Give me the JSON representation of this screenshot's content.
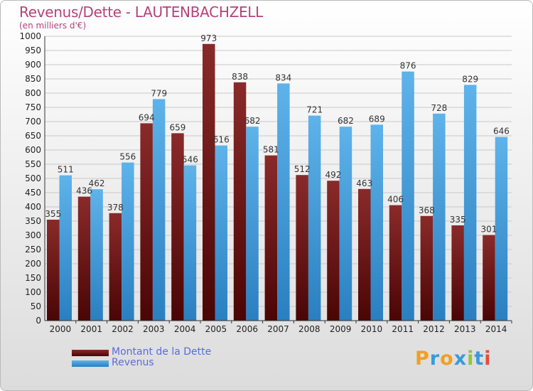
{
  "title": "Revenus/Dette - LAUTENBACHZELL",
  "subtitle": "(en milliers d'€)",
  "logo": {
    "text": "Proxiti",
    "colors": [
      "#f0a020",
      "#3a9ad9",
      "#f0a020",
      "#3a9ad9",
      "#8dc63f",
      "#3a9ad9",
      "#e84c3d"
    ]
  },
  "chart_data": {
    "type": "bar",
    "title": "Revenus/Dette - LAUTENBACHZELL",
    "subtitle": "(en milliers d'€)",
    "categories": [
      "2000",
      "2001",
      "2002",
      "2003",
      "2004",
      "2005",
      "2006",
      "2007",
      "2008",
      "2009",
      "2010",
      "2011",
      "2012",
      "2013",
      "2014"
    ],
    "series": [
      {
        "name": "Montant de la Dette",
        "color": "#7b1a1a",
        "values": [
          355,
          436,
          378,
          694,
          659,
          973,
          838,
          581,
          512,
          492,
          463,
          406,
          368,
          335,
          301
        ]
      },
      {
        "name": "Revenus",
        "color": "#3a9ad9",
        "values": [
          511,
          462,
          556,
          779,
          546,
          616,
          682,
          834,
          721,
          682,
          689,
          876,
          728,
          829,
          646
        ]
      }
    ],
    "ylim": [
      0,
      1000
    ],
    "yticks": [
      0,
      50,
      100,
      150,
      200,
      250,
      300,
      350,
      400,
      450,
      500,
      550,
      600,
      650,
      700,
      750,
      800,
      850,
      900,
      950,
      1000
    ],
    "grid": true,
    "legend_position": "bottom-left"
  }
}
